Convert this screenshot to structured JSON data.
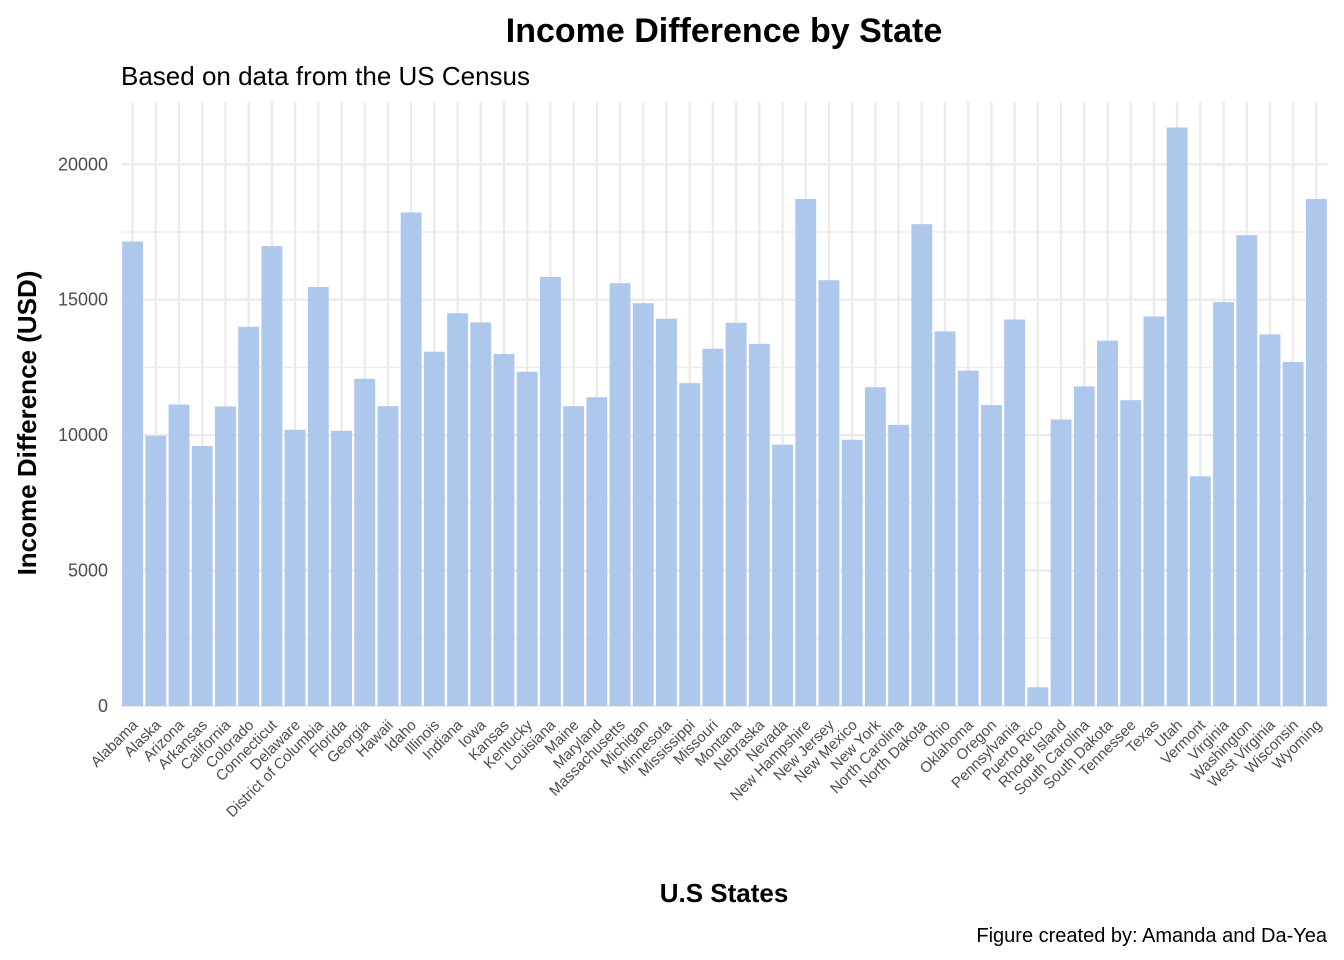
{
  "chart_data": {
    "type": "bar",
    "title": "Income Difference by State",
    "subtitle": "Based on data from the US Census",
    "xlabel": "U.S States",
    "ylabel": "Income Difference (USD)",
    "caption": "Figure created by: Amanda and Da-Yea",
    "ylim": [
      0,
      22300
    ],
    "yticks": [
      0,
      5000,
      10000,
      15000,
      20000
    ],
    "ytick_labels": [
      "0",
      "5000",
      "10000",
      "15000",
      "20000"
    ],
    "grid": true,
    "legend": "none",
    "bar_color": "#aec7ec",
    "categories": [
      "Alabama",
      "Alaska",
      "Arizona",
      "Arkansas",
      "California",
      "Colorado",
      "Connecticut",
      "Delaware",
      "District of Columbia",
      "Florida",
      "Georgia",
      "Hawaii",
      "Idaho",
      "Illinois",
      "Indiana",
      "Iowa",
      "Kansas",
      "Kentucky",
      "Louisiana",
      "Maine",
      "Maryland",
      "Massachusetts",
      "Michigan",
      "Minnesota",
      "Mississippi",
      "Missouri",
      "Montana",
      "Nebraska",
      "Nevada",
      "New Hampshire",
      "New Jersey",
      "New Mexico",
      "New York",
      "North Carolina",
      "North Dakota",
      "Ohio",
      "Oklahoma",
      "Oregon",
      "Pennsylvania",
      "Puerto Rico",
      "Rhode Island",
      "South Carolina",
      "South Dakota",
      "Tennessee",
      "Texas",
      "Utah",
      "Vermont",
      "Virginia",
      "Washington",
      "West Virginia",
      "Wisconsin",
      "Wyoming"
    ],
    "values": [
      17150,
      9980,
      11130,
      9600,
      11060,
      14000,
      16980,
      10200,
      15470,
      10160,
      12080,
      11070,
      18220,
      13080,
      14500,
      14160,
      13000,
      12340,
      15840,
      11070,
      11400,
      15610,
      14870,
      14300,
      11920,
      13190,
      14150,
      13370,
      9650,
      18720,
      15720,
      9830,
      11770,
      10380,
      17790,
      13830,
      12380,
      11110,
      14270,
      690,
      10580,
      11800,
      13490,
      11290,
      14380,
      21360,
      8480,
      14910,
      17380,
      13720,
      12700,
      18720
    ]
  }
}
